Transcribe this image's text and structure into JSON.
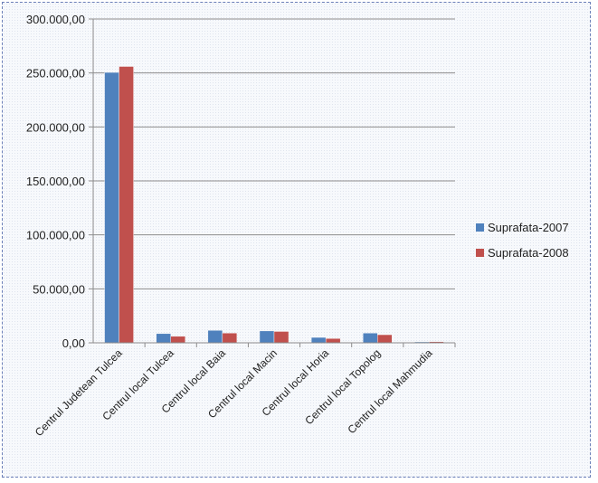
{
  "chart_data": {
    "type": "bar",
    "title": "",
    "xlabel": "",
    "ylabel": "",
    "categories": [
      "Centrul Judetean Tulcea",
      "Centrul local Tulcea",
      "Centrul local Baia",
      "Centrul local Macin",
      "Centrul local Horia",
      "Centrul local Topolog",
      "Centrul local Mahmudia"
    ],
    "series": [
      {
        "name": "Suprafata-2007",
        "color": "#4f81bd",
        "values": [
          250500,
          8500,
          11500,
          11000,
          5000,
          9000,
          500
        ]
      },
      {
        "name": "Suprafata-2008",
        "color": "#c0504d",
        "values": [
          256000,
          6000,
          9000,
          10500,
          4000,
          7500,
          1000
        ]
      }
    ],
    "ylim": [
      0,
      300000
    ],
    "yticks": [
      0,
      50000,
      100000,
      150000,
      200000,
      250000,
      300000
    ],
    "ytick_labels": [
      "0,00",
      "50.000,00",
      "100.000,00",
      "150.000,00",
      "200.000,00",
      "250.000,00",
      "300.000,00"
    ],
    "grid": true,
    "legend_position": "right"
  }
}
